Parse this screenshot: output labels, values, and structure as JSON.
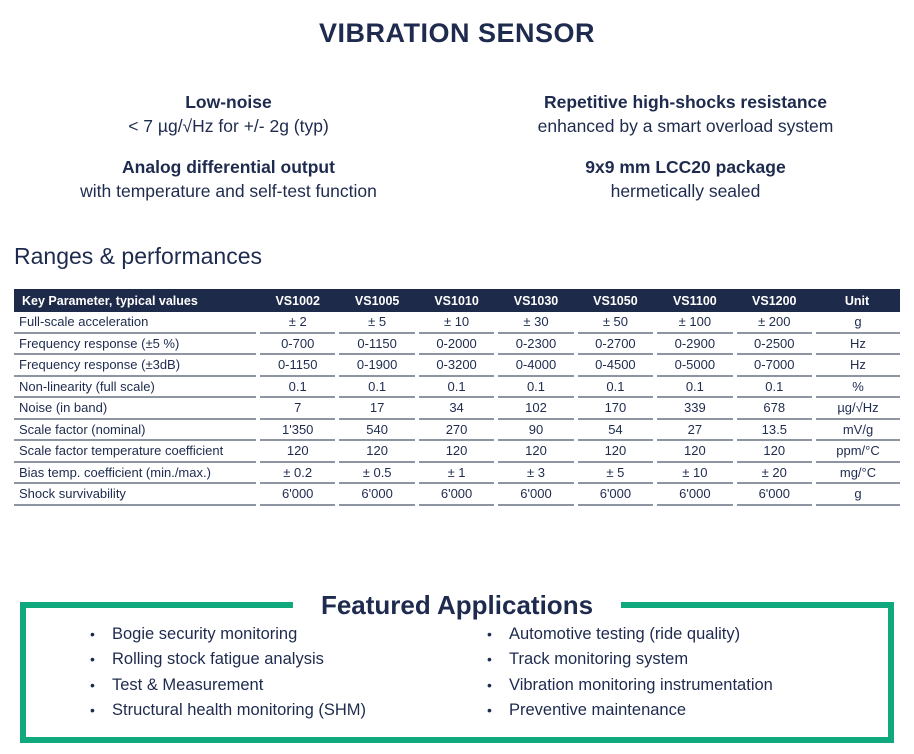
{
  "document": {
    "title": "VIBRATION SENSOR",
    "section_heading": "Ranges & performances"
  },
  "features": [
    {
      "heading": "Low-noise",
      "detail": "< 7 µg/√Hz for +/- 2g (typ)"
    },
    {
      "heading": "Repetitive high-shocks resistance",
      "detail": "enhanced by a smart overload system"
    },
    {
      "heading": "Analog differential output",
      "detail": "with temperature and self-test function"
    },
    {
      "heading": "9x9 mm LCC20 package",
      "detail": "hermetically sealed"
    }
  ],
  "table": {
    "columns": [
      "Key Parameter, typical values",
      "VS1002",
      "VS1005",
      "VS1010",
      "VS1030",
      "VS1050",
      "VS1100",
      "VS1200",
      "Unit"
    ],
    "rows": [
      [
        "Full-scale acceleration",
        "± 2",
        "± 5",
        "± 10",
        "± 30",
        "± 50",
        "± 100",
        "± 200",
        "g"
      ],
      [
        "Frequency response (±5 %)",
        "0-700",
        "0-1150",
        "0-2000",
        "0-2300",
        "0-2700",
        "0-2900",
        "0-2500",
        "Hz"
      ],
      [
        "Frequency response (±3dB)",
        "0-1150",
        "0-1900",
        "0-3200",
        "0-4000",
        "0-4500",
        "0-5000",
        "0-7000",
        "Hz"
      ],
      [
        "Non-linearity (full scale)",
        "0.1",
        "0.1",
        "0.1",
        "0.1",
        "0.1",
        "0.1",
        "0.1",
        "%"
      ],
      [
        "Noise (in band)",
        "7",
        "17",
        "34",
        "102",
        "170",
        "339",
        "678",
        "µg/√Hz"
      ],
      [
        "Scale factor (nominal)",
        "1'350",
        "540",
        "270",
        "90",
        "54",
        "27",
        "13.5",
        "mV/g"
      ],
      [
        "Scale factor temperature coefficient",
        "120",
        "120",
        "120",
        "120",
        "120",
        "120",
        "120",
        "ppm/°C"
      ],
      [
        "Bias temp. coefficient (min./max.)",
        "± 0.2",
        "± 0.5",
        "± 1",
        "± 3",
        "± 5",
        "± 10",
        "± 20",
        "mg/°C"
      ],
      [
        "Shock survivability",
        "6'000",
        "6'000",
        "6'000",
        "6'000",
        "6'000",
        "6'000",
        "6'000",
        "g"
      ]
    ]
  },
  "applications": {
    "heading": "Featured Applications",
    "columns": [
      {
        "items": [
          "Bogie security monitoring",
          "Rolling stock fatigue analysis",
          "Test & Measurement",
          "Structural health monitoring (SHM)"
        ]
      },
      {
        "items": [
          "Automotive testing (ride quality)",
          "Track monitoring system",
          "Vibration monitoring instrumentation",
          "Preventive maintenance"
        ]
      }
    ]
  },
  "colors": {
    "navy": "#1e2b4e",
    "green": "#0fa97d",
    "row_line": "#8d95a3",
    "table_header_bg": "#1e2a49",
    "table_header_text": "#ffffff"
  }
}
